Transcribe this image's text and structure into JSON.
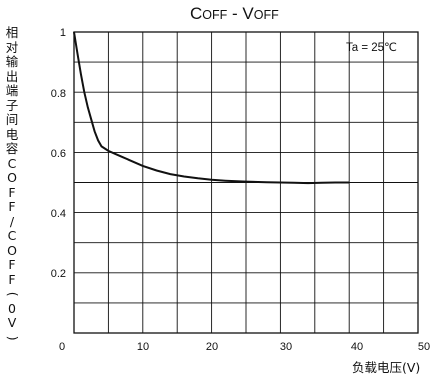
{
  "chart_data": {
    "type": "line",
    "title": {
      "C": "C",
      "C_sc": "OFF",
      "sep": " - ",
      "V": "V",
      "V_sc": "OFF"
    },
    "ylabel": "相对输出端子间电容COFF/COFF(0V)",
    "xlabel": "负载电压(V)",
    "annotation": "Ta = 25℃",
    "xlim": [
      0,
      50
    ],
    "ylim": [
      0,
      1
    ],
    "x_ticks": [
      "0",
      "10",
      "20",
      "30",
      "40",
      "50"
    ],
    "y_ticks": [
      "1",
      "0.8",
      "0.6",
      "0.4",
      "0.2"
    ],
    "grid": true,
    "series": [
      {
        "x": [
          0,
          0.5,
          1,
          1.5,
          2,
          2.5,
          3,
          3.5,
          4,
          5,
          6,
          7,
          8,
          10,
          12,
          14,
          16,
          18,
          20,
          22,
          25,
          28,
          30,
          32,
          34,
          36,
          38,
          40
        ],
        "y": [
          1.0,
          0.93,
          0.86,
          0.8,
          0.75,
          0.71,
          0.67,
          0.64,
          0.62,
          0.605,
          0.595,
          0.585,
          0.575,
          0.555,
          0.54,
          0.528,
          0.52,
          0.514,
          0.509,
          0.506,
          0.503,
          0.501,
          0.5,
          0.499,
          0.498,
          0.499,
          0.5,
          0.5
        ]
      }
    ]
  },
  "colors": {
    "line": "#111111",
    "grid": "#111111",
    "frame": "#111111"
  }
}
